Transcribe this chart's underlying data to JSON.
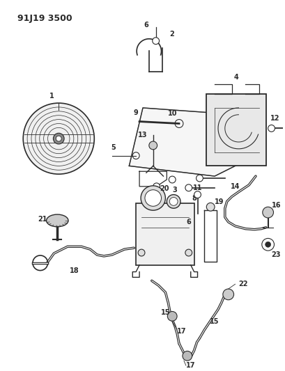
{
  "title": "91J19 3500",
  "bg_color": "#ffffff",
  "line_color": "#2a2a2a",
  "title_fontsize": 9,
  "label_fontsize": 7,
  "fig_w": 4.1,
  "fig_h": 5.33,
  "dpi": 100
}
